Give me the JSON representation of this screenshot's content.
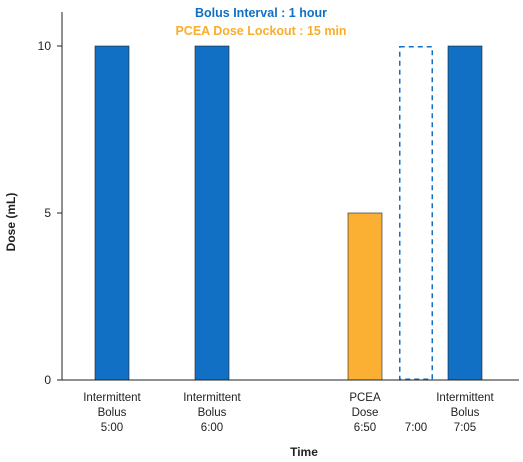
{
  "chart_data": {
    "type": "bar",
    "xlabel": "Time",
    "ylabel": "Dose (mL)",
    "ylim": [
      0,
      11
    ],
    "yticks": [
      0,
      5,
      10
    ],
    "grid": false,
    "annotations": [
      {
        "text": "Bolus Interval : 1 hour",
        "color": "#1170c4"
      },
      {
        "text": "PCEA Dose Lockout : 15 min",
        "color": "#f9ae2b"
      }
    ],
    "bars": [
      {
        "label_lines": [
          "Intermittent",
          "Bolus",
          "5:00"
        ],
        "value": 10,
        "color": "#1170c4",
        "style": "solid"
      },
      {
        "label_lines": [
          "Intermittent",
          "Bolus",
          "6:00"
        ],
        "value": 10,
        "color": "#1170c4",
        "style": "solid"
      },
      {
        "label_lines": [
          "PCEA",
          "Dose",
          "6:50"
        ],
        "value": 5,
        "color": "#fbb034",
        "style": "solid"
      },
      {
        "label_lines": [
          "",
          "",
          "7:00"
        ],
        "value": 10,
        "color": "#1170c4",
        "style": "dashed"
      },
      {
        "label_lines": [
          "Intermittent",
          "Bolus",
          "7:05"
        ],
        "value": 10,
        "color": "#1170c4",
        "style": "solid"
      }
    ]
  }
}
